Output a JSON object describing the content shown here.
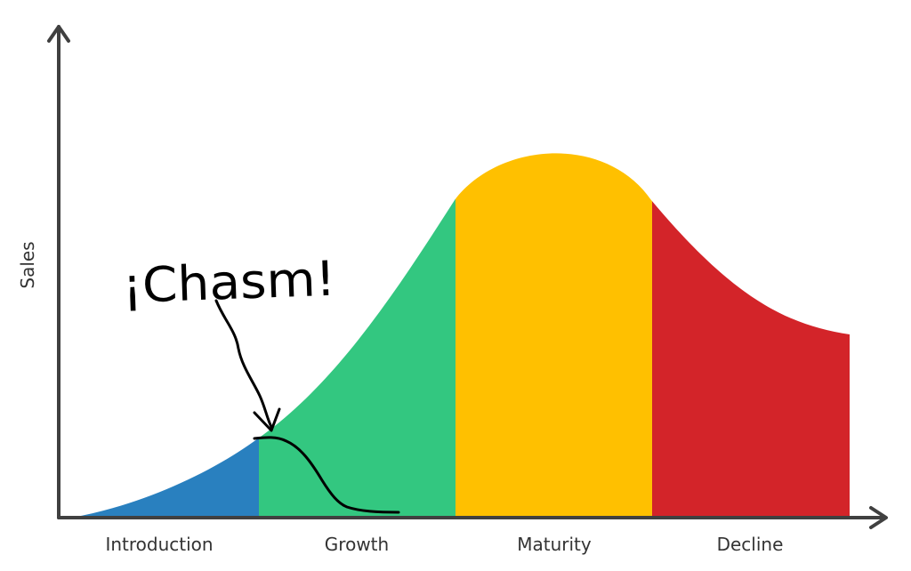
{
  "y_axis_label": "Sales",
  "stages": [
    {
      "label": "Introduction",
      "color": "#2980BF"
    },
    {
      "label": "Growth",
      "color": "#33C780"
    },
    {
      "label": "Maturity",
      "color": "#FFC000"
    },
    {
      "label": "Decline",
      "color": "#D32429"
    }
  ],
  "annotation": {
    "text": "¡Chasm!",
    "color": "#000000"
  },
  "axis_color": "#404040"
}
